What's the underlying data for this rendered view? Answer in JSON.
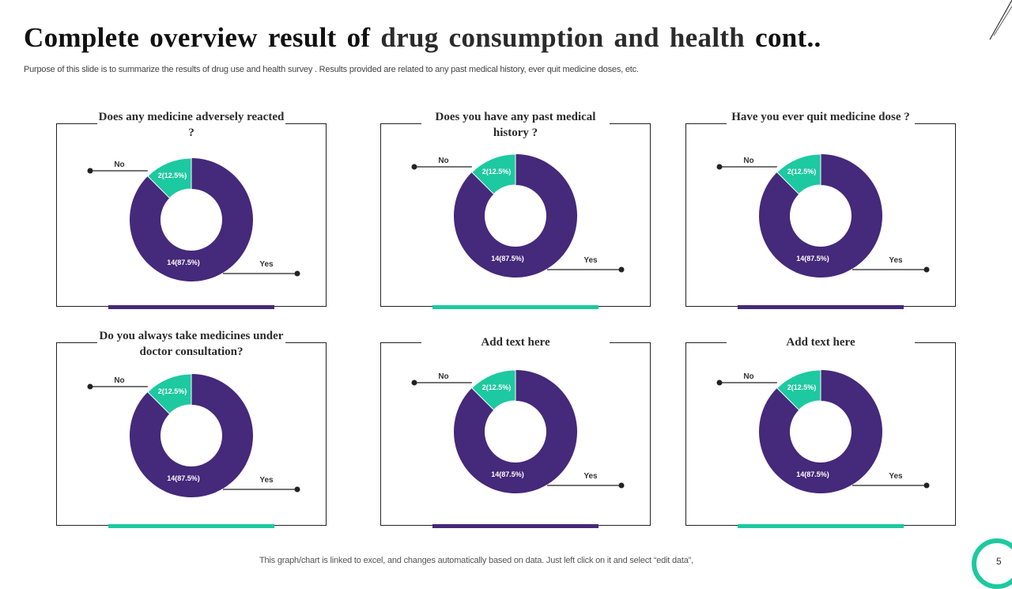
{
  "header": {
    "title_part1": "Complete overview result of",
    "title_part2": "drug consumption and health",
    "title_part3": "cont..",
    "subtitle": "Purpose of this slide is to summarize the results of  drug use and health survey .  Results provided are related to any past medical history, ever quit medicine doses, etc."
  },
  "colors": {
    "yes": "#45297a",
    "no": "#1dc9a0",
    "accent_purple": "#45297a",
    "accent_teal": "#1dc9a0"
  },
  "chart_data": [
    {
      "type": "pie",
      "title": "Does any medicine adversely reacted ?",
      "categories": [
        "No",
        "Yes"
      ],
      "values": [
        2,
        14
      ],
      "labels": [
        "2(12.5%)",
        "14(87.5%)"
      ],
      "accent": "purple"
    },
    {
      "type": "pie",
      "title": "Does you have any past medical history ?",
      "categories": [
        "No",
        "Yes"
      ],
      "values": [
        2,
        14
      ],
      "labels": [
        "2(12.5%)",
        "14(87.5%)"
      ],
      "accent": "teal"
    },
    {
      "type": "pie",
      "title": "Have you ever quit medicine dose ?",
      "categories": [
        "No",
        "Yes"
      ],
      "values": [
        2,
        14
      ],
      "labels": [
        "2(12.5%)",
        "14(87.5%)"
      ],
      "accent": "purple"
    },
    {
      "type": "pie",
      "title": "Do you always take medicines under doctor consultation?",
      "categories": [
        "No",
        "Yes"
      ],
      "values": [
        2,
        14
      ],
      "labels": [
        "2(12.5%)",
        "14(87.5%)"
      ],
      "accent": "teal"
    },
    {
      "type": "pie",
      "title": "Add text here",
      "categories": [
        "No",
        "Yes"
      ],
      "values": [
        2,
        14
      ],
      "labels": [
        "2(12.5%)",
        "14(87.5%)"
      ],
      "accent": "purple"
    },
    {
      "type": "pie",
      "title": "Add text here",
      "categories": [
        "No",
        "Yes"
      ],
      "values": [
        2,
        14
      ],
      "labels": [
        "2(12.5%)",
        "14(87.5%)"
      ],
      "accent": "teal"
    }
  ],
  "footer": {
    "note": "This graph/chart is linked to excel,  and changes automatically based on data. Just left click on it and select “edit data”,",
    "page_number": "5"
  }
}
